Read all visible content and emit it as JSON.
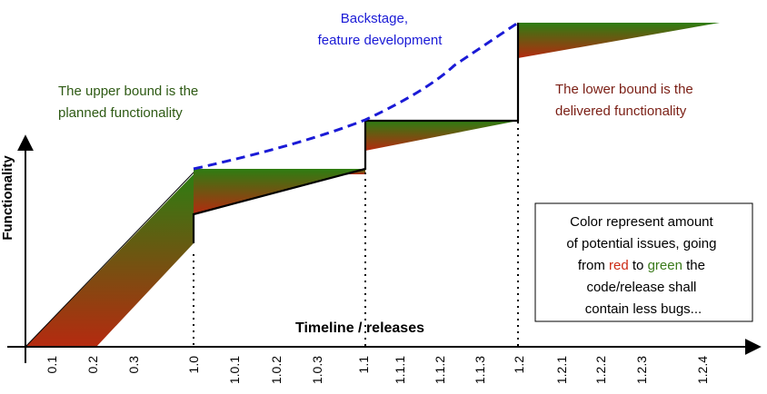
{
  "axes": {
    "x_title": "Timeline / releases",
    "y_title": "Functionality",
    "ticks": [
      "0.1",
      "0.2",
      "0.3",
      "1.0",
      "1.0.1",
      "1.0.2",
      "1.0.3",
      "1.1",
      "1.1.1",
      "1.1.2",
      "1.1.3",
      "1.2",
      "1.2.1",
      "1.2.2",
      "1.2.3",
      "1.2.4"
    ]
  },
  "annotations": {
    "backstage_line1": "Backstage,",
    "backstage_line2": "feature development",
    "upper_line1": "The upper bound is the",
    "upper_line2": "planned functionality",
    "lower_line1": "The lower bound is the",
    "lower_line2": "delivered functionality"
  },
  "legend_box": {
    "line1": "Color represent amount",
    "line2": "of potential issues, going",
    "line3_from": "from ",
    "line3_red": "red",
    "line3_to": " to ",
    "line3_green": "green",
    "line3_rest": " the",
    "line4": "code/release shall",
    "line5": "contain less bugs..."
  },
  "colors": {
    "band_top": "#2e7d12",
    "band_bottom": "#b52a10",
    "dashed_line": "#1a1ad6",
    "backstage_text": "#1a1ad6",
    "upper_text": "#2e5a14",
    "lower_text": "#7a1e14",
    "red_word": "#cc2a14",
    "green_word": "#3a7a1a"
  }
}
